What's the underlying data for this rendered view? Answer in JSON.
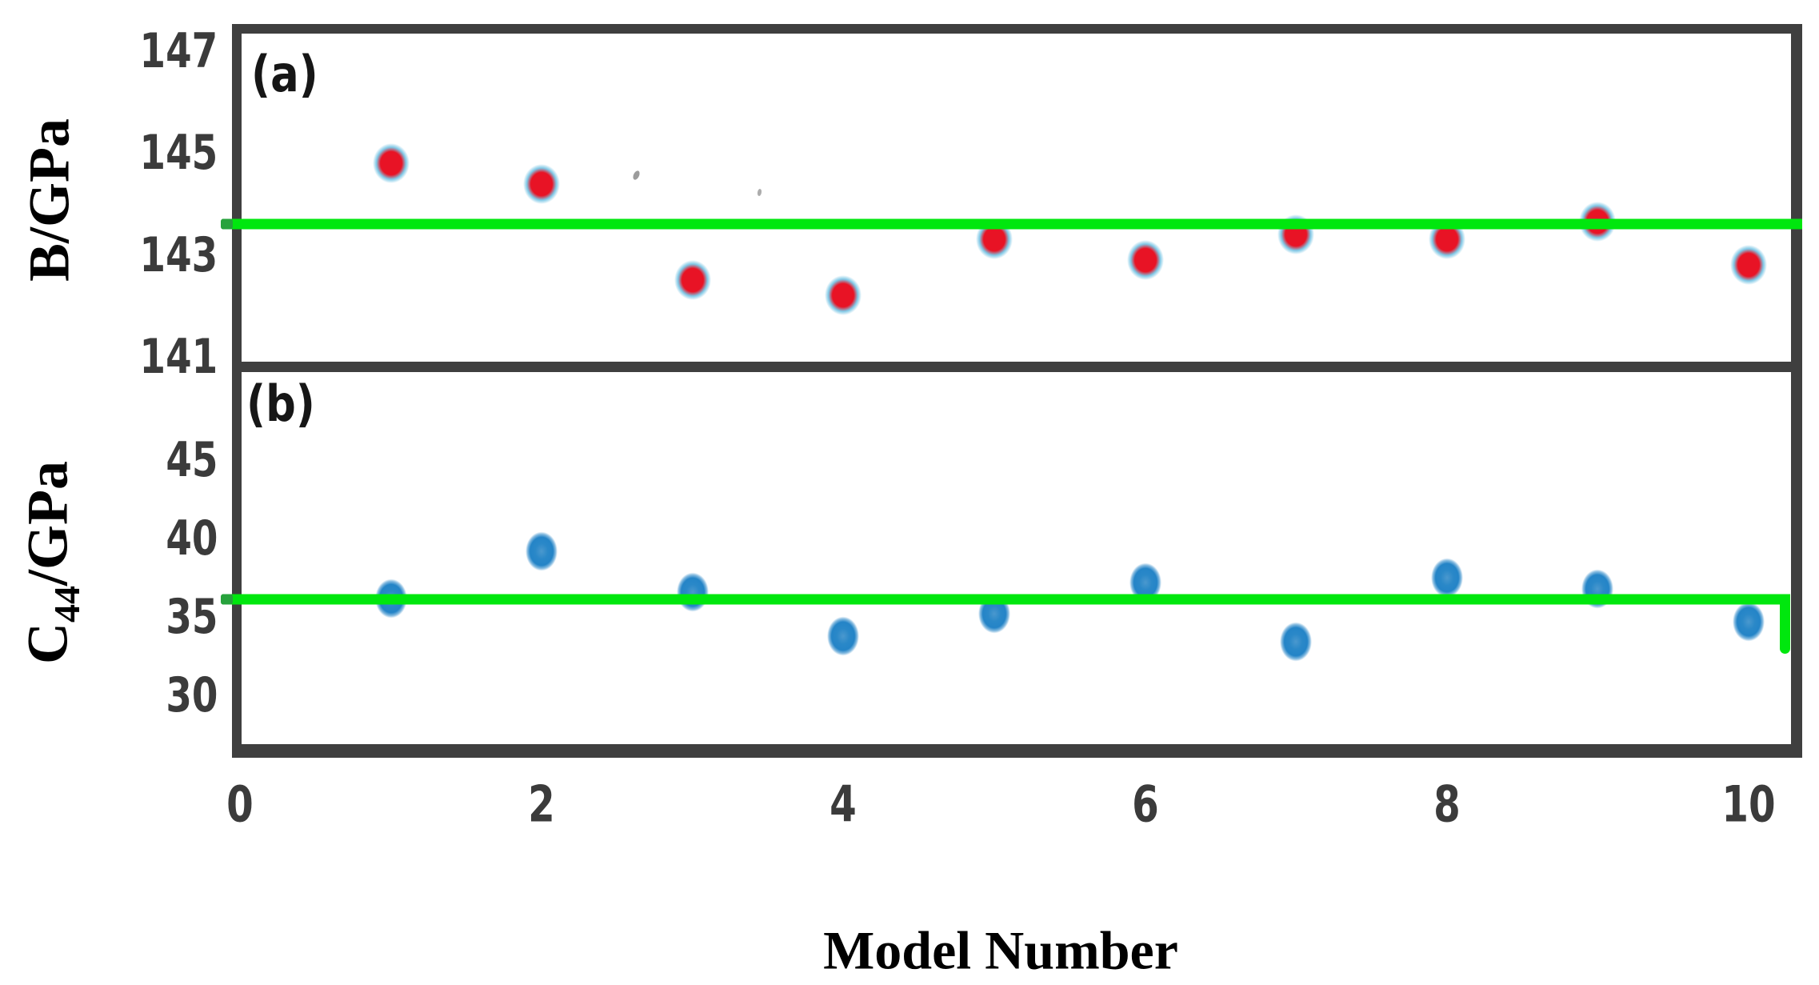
{
  "chart_data": [
    {
      "type": "scatter",
      "panel_label": "(a)",
      "series_name": "B",
      "x": [
        1,
        2,
        3,
        4,
        5,
        6,
        7,
        8,
        9,
        10
      ],
      "y": [
        144.8,
        144.4,
        142.5,
        142.2,
        143.3,
        142.9,
        143.4,
        143.3,
        143.65,
        142.8
      ],
      "marker_color": "#e81325",
      "marker_edge_color": "#7fc8e6",
      "reference_line": {
        "y": 143.6,
        "color": "#00e70e"
      },
      "xlabel": "",
      "ylabel": "B/GPa",
      "yticks": [
        141,
        143,
        145,
        147
      ],
      "ylim": [
        140.9,
        147.35
      ],
      "xticks": [
        0,
        2,
        4,
        6,
        8,
        10
      ],
      "xlim": [
        0,
        10.34
      ],
      "grid": false,
      "legend": false
    },
    {
      "type": "scatter",
      "panel_label": "(b)",
      "series_name": "C44",
      "x": [
        1,
        2,
        3,
        4,
        5,
        6,
        7,
        8,
        9,
        10
      ],
      "y": [
        36.2,
        39.2,
        36.6,
        33.8,
        35.2,
        37.2,
        33.4,
        37.5,
        36.8,
        34.7
      ],
      "marker_color": "#2484c7",
      "marker_edge_color": "#2484c7",
      "reference_line": {
        "y": 36.1,
        "color": "#00e70e",
        "drop_at_x": 10.24,
        "drop_to_y": 33.0
      },
      "xlabel": "Model Number",
      "ylabel": "C44/GPa",
      "ylabel_parts": {
        "main": "C",
        "sub": "44",
        "rest": "/GPa"
      },
      "yticks": [
        30,
        35,
        40,
        45
      ],
      "ylim": [
        26.9,
        50.6
      ],
      "xticks": [
        0,
        2,
        4,
        6,
        8,
        10
      ],
      "xlim": [
        0,
        10.34
      ],
      "grid": false,
      "legend": false
    }
  ]
}
